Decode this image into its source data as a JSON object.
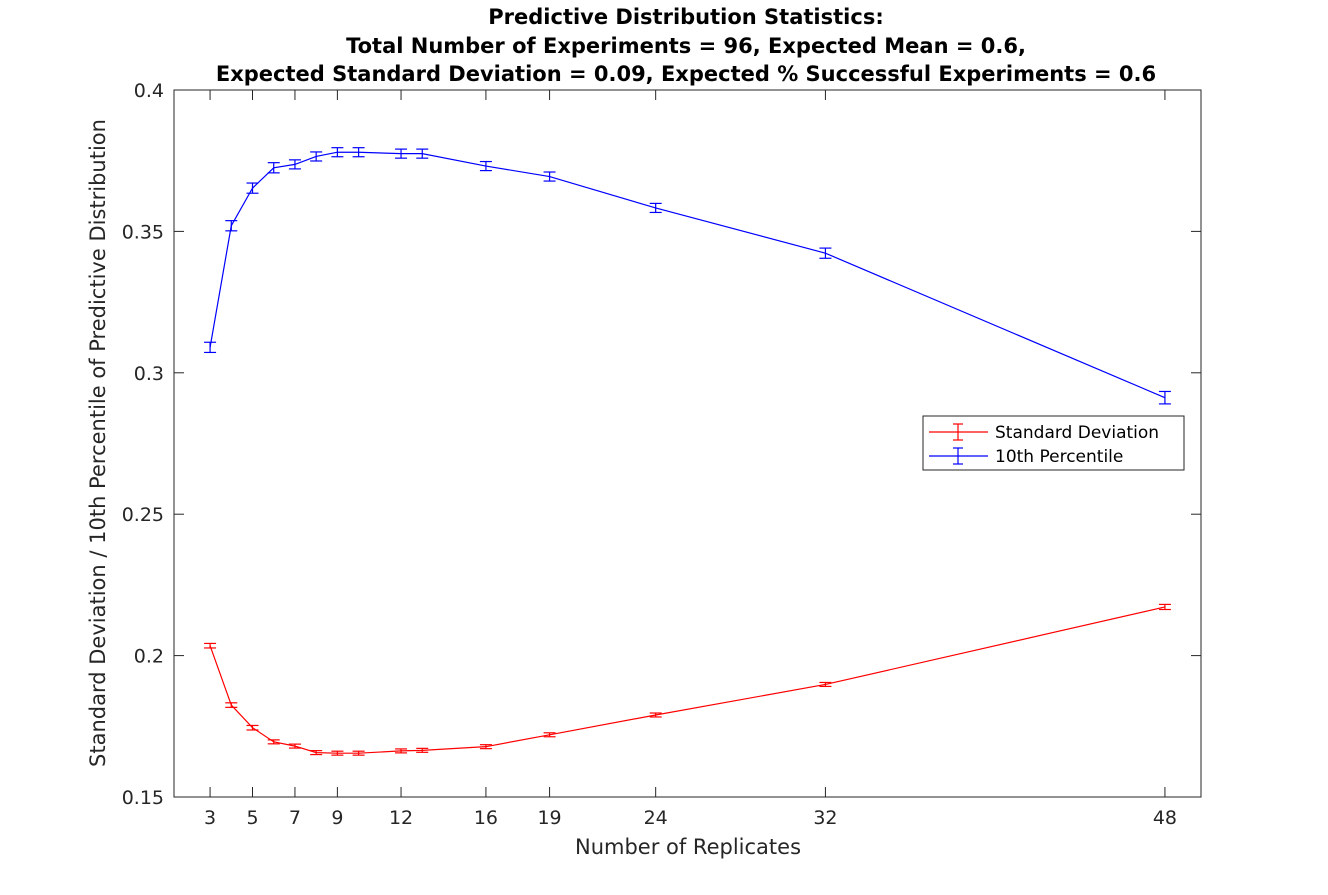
{
  "chart_data": {
    "type": "line",
    "title_lines": [
      "Predictive Distribution Statistics:",
      "Total Number of Experiments = 96, Expected Mean = 0.6,",
      "Expected Standard Deviation = 0.09, Expected % Successful Experiments = 0.6"
    ],
    "xlabel": "Number of Replicates",
    "ylabel": "Standard Deviation / 10th Percentile of Predictive Distribution",
    "xlim": [
      1.3,
      49.7
    ],
    "ylim": [
      0.15,
      0.4
    ],
    "xticks": [
      3,
      5,
      7,
      9,
      12,
      16,
      19,
      24,
      32,
      48
    ],
    "yticks": [
      0.15,
      0.2,
      0.25,
      0.3,
      0.35,
      0.4
    ],
    "ytick_labels": [
      "0.15",
      "0.2",
      "0.25",
      "0.3",
      "0.35",
      "0.4"
    ],
    "grid": false,
    "legend_position": "right",
    "series": [
      {
        "name": "Standard Deviation",
        "color": "#ff0000",
        "x": [
          3,
          4,
          5,
          6,
          7,
          8,
          9,
          10,
          12,
          13,
          16,
          19,
          24,
          32,
          48
        ],
        "y": [
          0.2035,
          0.1825,
          0.1745,
          0.1695,
          0.168,
          0.1657,
          0.1655,
          0.1655,
          0.1663,
          0.1665,
          0.1678,
          0.172,
          0.179,
          0.1898,
          0.2172
        ],
        "err": [
          0.0008,
          0.0008,
          0.0008,
          0.0007,
          0.0007,
          0.0007,
          0.0007,
          0.0007,
          0.0007,
          0.0007,
          0.0007,
          0.0007,
          0.0007,
          0.0007,
          0.0009
        ]
      },
      {
        "name": "10th Percentile",
        "color": "#0000ff",
        "x": [
          3,
          4,
          5,
          6,
          7,
          8,
          9,
          10,
          12,
          13,
          16,
          19,
          24,
          32,
          48
        ],
        "y": [
          0.309,
          0.352,
          0.3653,
          0.3725,
          0.3737,
          0.3765,
          0.378,
          0.378,
          0.3775,
          0.3775,
          0.3731,
          0.3694,
          0.3583,
          0.3423,
          0.2912
        ],
        "err": [
          0.0018,
          0.0018,
          0.0018,
          0.0018,
          0.0016,
          0.0016,
          0.0016,
          0.0016,
          0.0016,
          0.0016,
          0.0016,
          0.0016,
          0.0016,
          0.0018,
          0.0022
        ]
      }
    ]
  },
  "colors": {
    "background": "#ffffff",
    "axis": "#262626"
  }
}
